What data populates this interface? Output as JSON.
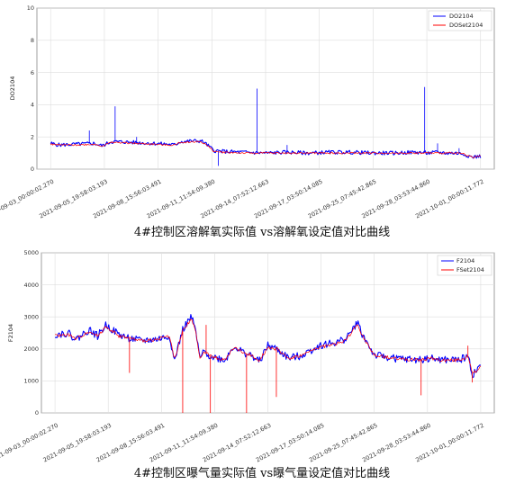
{
  "chart_data": [
    {
      "type": "line",
      "title": "",
      "ylabel": "DO2104",
      "xlabel": "",
      "caption": "4#控制区溶解氧实际值 vs溶解氧设定值对比曲线",
      "ylim": [
        0,
        10
      ],
      "yticks": [
        0,
        2,
        4,
        6,
        8,
        10
      ],
      "xticks": [
        "2021-09-03_00:00:02.270",
        "2021-09-05_19:58:03.193",
        "2021-09-08_15:56:03.491",
        "2021-09-11_11:54:09.380",
        "2021-09-14_07:52:12.663",
        "2021-09-17_03:50:14.085",
        "2021-09-25_07:45:42.865",
        "2021-09-28_03:53:44.860",
        "2021-10-01_00:00:11.772"
      ],
      "legend_position": "top-right",
      "grid": true,
      "series": [
        {
          "name": "DO2104",
          "color": "#0000ff",
          "x": [
            0,
            0.02,
            0.06,
            0.1,
            0.12,
            0.14,
            0.16,
            0.2,
            0.24,
            0.27,
            0.29,
            0.3,
            0.33,
            0.35,
            0.36,
            0.38,
            0.4,
            0.45,
            0.5,
            0.55,
            0.6,
            0.65,
            0.7,
            0.75,
            0.8,
            0.85,
            0.88,
            0.9,
            0.92,
            0.94,
            0.96,
            0.98,
            1.0
          ],
          "values": [
            1.6,
            1.5,
            1.55,
            1.6,
            1.45,
            1.7,
            1.7,
            1.65,
            1.6,
            1.55,
            1.5,
            1.7,
            1.75,
            1.75,
            1.6,
            1.15,
            1.1,
            1.05,
            1.0,
            1.05,
            1.0,
            1.05,
            1.05,
            1.0,
            1.0,
            1.05,
            1.0,
            1.05,
            1.0,
            1.0,
            0.95,
            0.75,
            0.8
          ],
          "spikes": [
            {
              "x": 0.09,
              "y": 2.4
            },
            {
              "x": 0.15,
              "y": 3.9
            },
            {
              "x": 0.2,
              "y": 2.0
            },
            {
              "x": 0.39,
              "y": 0.2
            },
            {
              "x": 0.48,
              "y": 5.0
            },
            {
              "x": 0.55,
              "y": 1.5
            },
            {
              "x": 0.87,
              "y": 5.1
            },
            {
              "x": 0.9,
              "y": 1.6
            },
            {
              "x": 0.95,
              "y": 1.3
            }
          ]
        },
        {
          "name": "DOSet2104",
          "color": "#ff0000",
          "x": [
            0,
            0.02,
            0.06,
            0.1,
            0.12,
            0.14,
            0.16,
            0.2,
            0.24,
            0.27,
            0.29,
            0.3,
            0.33,
            0.35,
            0.36,
            0.38,
            0.4,
            0.45,
            0.5,
            0.55,
            0.6,
            0.65,
            0.7,
            0.75,
            0.8,
            0.85,
            0.88,
            0.9,
            0.92,
            0.94,
            0.96,
            0.98,
            1.0
          ],
          "values": [
            1.55,
            1.5,
            1.5,
            1.55,
            1.45,
            1.65,
            1.65,
            1.6,
            1.55,
            1.5,
            1.5,
            1.65,
            1.7,
            1.7,
            1.55,
            1.1,
            1.05,
            1.0,
            1.0,
            1.0,
            1.0,
            1.0,
            1.0,
            1.0,
            1.0,
            1.0,
            1.0,
            1.0,
            1.0,
            1.0,
            0.95,
            0.75,
            0.8
          ]
        }
      ]
    },
    {
      "type": "line",
      "title": "",
      "ylabel": "F2104",
      "xlabel": "",
      "caption": "4#控制区曝气量实际值 vs曝气量设定值对比曲线",
      "ylim": [
        0,
        5000
      ],
      "yticks": [
        0,
        1000,
        2000,
        3000,
        4000,
        5000
      ],
      "xticks": [
        "2021-09-03_00:00:02.270",
        "2021-09-05_19:58:03.193",
        "2021-09-08_15:56:03.491",
        "2021-09-11_11:54:09.380",
        "2021-09-14_07:52:12.663",
        "2021-09-17_03:50:14.085",
        "2021-09-25_07:45:42.865",
        "2021-09-28_03:53:44.860",
        "2021-10-01_00:00:11.772"
      ],
      "legend_position": "top-right",
      "grid": true,
      "series": [
        {
          "name": "F2104",
          "color": "#0000ff",
          "x": [
            0,
            0.03,
            0.05,
            0.08,
            0.1,
            0.12,
            0.15,
            0.17,
            0.2,
            0.24,
            0.27,
            0.28,
            0.3,
            0.31,
            0.32,
            0.33,
            0.34,
            0.35,
            0.37,
            0.4,
            0.42,
            0.44,
            0.46,
            0.48,
            0.5,
            0.52,
            0.55,
            0.58,
            0.62,
            0.66,
            0.68,
            0.7,
            0.71,
            0.72,
            0.75,
            0.8,
            0.85,
            0.88,
            0.91,
            0.94,
            0.96,
            0.97,
            0.98,
            0.99,
            1.0
          ],
          "values": [
            2450,
            2500,
            2300,
            2600,
            2400,
            2750,
            2450,
            2350,
            2250,
            2300,
            2400,
            1600,
            2600,
            2800,
            3000,
            2600,
            1700,
            1900,
            1750,
            1650,
            2100,
            1900,
            1800,
            1600,
            2100,
            2000,
            1700,
            1800,
            2100,
            2200,
            2300,
            2600,
            2850,
            2500,
            1800,
            1700,
            1650,
            1700,
            1650,
            1650,
            1700,
            1800,
            1200,
            1300,
            1550
          ]
        },
        {
          "name": "FSet2104",
          "color": "#ff0000",
          "x": [
            0,
            0.03,
            0.05,
            0.08,
            0.1,
            0.12,
            0.15,
            0.17,
            0.2,
            0.24,
            0.27,
            0.28,
            0.3,
            0.31,
            0.32,
            0.33,
            0.34,
            0.35,
            0.37,
            0.4,
            0.42,
            0.44,
            0.46,
            0.48,
            0.5,
            0.52,
            0.55,
            0.58,
            0.62,
            0.66,
            0.68,
            0.7,
            0.71,
            0.72,
            0.75,
            0.8,
            0.85,
            0.88,
            0.91,
            0.94,
            0.96,
            0.97,
            0.98,
            0.99,
            1.0
          ],
          "values": [
            2400,
            2450,
            2300,
            2550,
            2400,
            2700,
            2400,
            2350,
            2250,
            2300,
            2400,
            1650,
            2550,
            2750,
            2950,
            2550,
            1750,
            1900,
            1750,
            1650,
            2050,
            1900,
            1800,
            1650,
            2050,
            2000,
            1700,
            1800,
            2050,
            2150,
            2250,
            2550,
            2800,
            2450,
            1800,
            1700,
            1650,
            1700,
            1650,
            1650,
            1700,
            1750,
            1250,
            1300,
            1500
          ],
          "spikes": [
            {
              "x": 0.175,
              "y": 1250
            },
            {
              "x": 0.3,
              "y": 0
            },
            {
              "x": 0.355,
              "y": 2750
            },
            {
              "x": 0.365,
              "y": 0
            },
            {
              "x": 0.45,
              "y": 0
            },
            {
              "x": 0.52,
              "y": 500
            },
            {
              "x": 0.86,
              "y": 550
            },
            {
              "x": 0.97,
              "y": 2100
            },
            {
              "x": 0.98,
              "y": 950
            }
          ]
        }
      ]
    }
  ]
}
